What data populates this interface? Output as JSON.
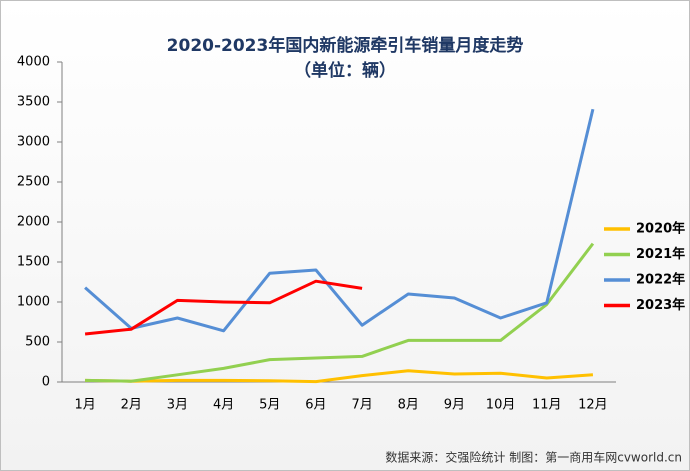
{
  "chart_data": {
    "type": "line",
    "title": "2020-2023年国内新能源牵引车销量月度走势",
    "subtitle": "（单位：辆）",
    "source": "数据来源：交强险统计   制图：第一商用车网cvworld.cn",
    "categories": [
      "1月",
      "2月",
      "3月",
      "4月",
      "5月",
      "6月",
      "7月",
      "8月",
      "9月",
      "10月",
      "11月",
      "12月"
    ],
    "series": [
      {
        "name": "2020年",
        "color": "#ffc000",
        "values": [
          20,
          10,
          20,
          20,
          15,
          5,
          80,
          140,
          100,
          110,
          50,
          90
        ]
      },
      {
        "name": "2021年",
        "color": "#92d050",
        "values": [
          20,
          10,
          90,
          170,
          280,
          300,
          320,
          520,
          520,
          520,
          970,
          1730
        ]
      },
      {
        "name": "2022年",
        "color": "#558ed5",
        "values": [
          1180,
          670,
          800,
          640,
          1360,
          1400,
          710,
          1100,
          1050,
          800,
          990,
          3410
        ]
      },
      {
        "name": "2023年",
        "color": "#ff0000",
        "values": [
          600,
          660,
          1020,
          1000,
          990,
          1260,
          1170,
          null,
          null,
          null,
          null,
          null
        ]
      }
    ],
    "ylim": [
      0,
      4000
    ],
    "yticks": [
      0,
      500,
      1000,
      1500,
      2000,
      2500,
      3000,
      3500,
      4000
    ],
    "legend": "right"
  }
}
